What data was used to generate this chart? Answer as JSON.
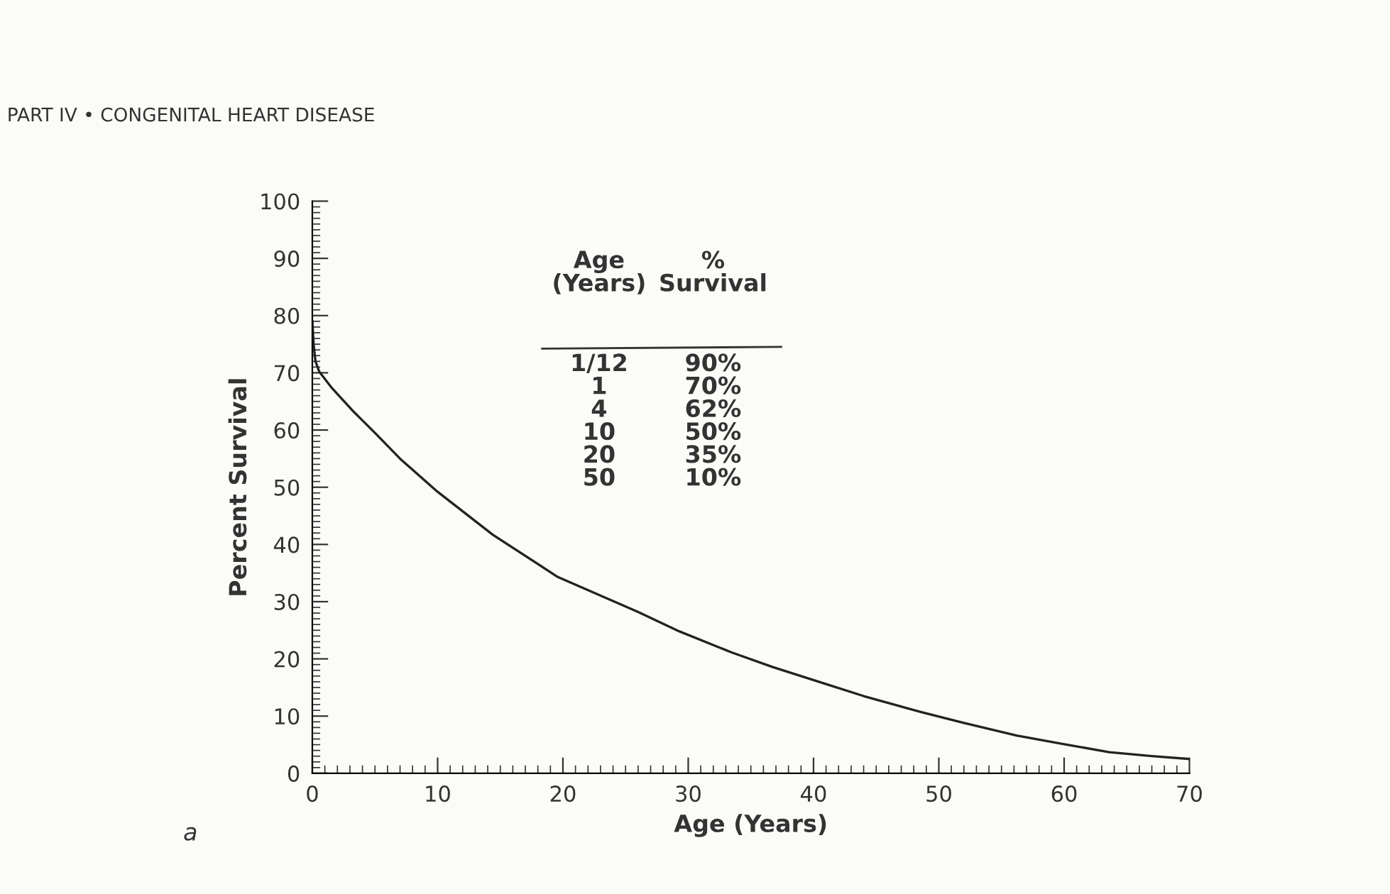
{
  "chart_data": {
    "type": "line",
    "title": "PART IV • CONGENITAL HEART DISEASE",
    "xlabel": "Age (Years)",
    "ylabel": "Percent Survival",
    "x": [
      0,
      0.1,
      0.25,
      0.55,
      1.5,
      3.3,
      5,
      7,
      10,
      14.4,
      19.6,
      26,
      29.3,
      33.5,
      36.7,
      41,
      44,
      48.6,
      52,
      56.2,
      60,
      63.6,
      67,
      70
    ],
    "series": [
      {
        "color": "#222222",
        "values": [
          79,
          75,
          72,
          70.2,
          67.5,
          63.2,
          59.5,
          55,
          49.2,
          41.7,
          34.3,
          28.2,
          24.8,
          21.1,
          18.6,
          15.6,
          13.5,
          10.7,
          8.8,
          6.6,
          5.1,
          3.7,
          3,
          2.5
        ]
      }
    ],
    "xlim": [
      0,
      70
    ],
    "ylim": [
      0,
      100
    ],
    "xticks": [
      0,
      10,
      20,
      30,
      40,
      50,
      60,
      70
    ],
    "yticks": [
      0,
      10,
      20,
      30,
      40,
      50,
      60,
      70,
      80,
      90,
      100
    ],
    "grid": false,
    "legend": false,
    "marker": "none",
    "line_style": "solid",
    "annotations": [
      "Age\n(Years)",
      "%\nSurvival",
      "1/12\n1\n4\n10\n20\n50",
      "90%\n70%\n62%\n50%\n35%\n10%",
      "a"
    ]
  }
}
